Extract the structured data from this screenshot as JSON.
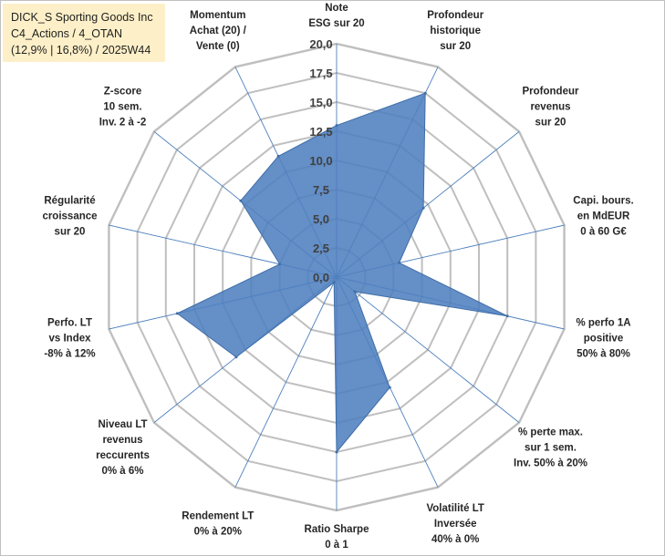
{
  "title": {
    "line1": "DICK_S Sporting Goods Inc",
    "line2": "C4_Actions / 4_OTAN",
    "line3": "(12,9% | 16,8%) / 2025W44"
  },
  "colors": {
    "fill": "#4f7fbf",
    "stroke": "#3f6ea8",
    "grid": "#bfbfbf",
    "spoke": "#4f81bd"
  },
  "chart_data": {
    "type": "radar",
    "rmin": 0,
    "rmax": 20,
    "tick_step": 2.5,
    "tick_labels": [
      "0,0",
      "2,5",
      "5,0",
      "7,5",
      "10,0",
      "12,5",
      "15,0",
      "17,5",
      "20,0"
    ],
    "axes": [
      {
        "label": [
          "Note",
          "ESG sur 20"
        ],
        "value": 13
      },
      {
        "label": [
          "Profondeur",
          "historique",
          "sur 20"
        ],
        "value": 17.5
      },
      {
        "label": [
          "Profondeur",
          "revenus",
          "sur 20"
        ],
        "value": 9.5
      },
      {
        "label": [
          "Capi. bours.",
          "en MdEUR",
          "0 à 60 G€"
        ],
        "value": 5.5
      },
      {
        "label": [
          "% perfo 1A",
          "positive",
          "50% à 80%"
        ],
        "value": 15
      },
      {
        "label": [
          "% perte max.",
          "sur 1 sem.",
          "Inv. 50% à 20%"
        ],
        "value": 2
      },
      {
        "label": [
          "Volatilité LT",
          "Inversée",
          "40% à 0%"
        ],
        "value": 10.5
      },
      {
        "label": [
          "Ratio Sharpe",
          "0 à 1"
        ],
        "value": 15
      },
      {
        "label": [
          "Rendement LT",
          "0% à 20%"
        ],
        "value": 0.5
      },
      {
        "label": [
          "Niveau LT",
          "revenus",
          "reccurents",
          "0% à 6%"
        ],
        "value": 11
      },
      {
        "label": [
          "Perfo. LT",
          "vs Index",
          "-8% à 12%"
        ],
        "value": 14
      },
      {
        "label": [
          "Régularité",
          "croissance",
          "sur 20"
        ],
        "value": 5
      },
      {
        "label": [
          "Z-score",
          "10 sem.",
          "Inv. 2 à -2"
        ],
        "value": 10.5
      },
      {
        "label": [
          "Momentum",
          "Achat (20) /",
          "Vente (0)"
        ],
        "value": 11.5
      }
    ]
  }
}
